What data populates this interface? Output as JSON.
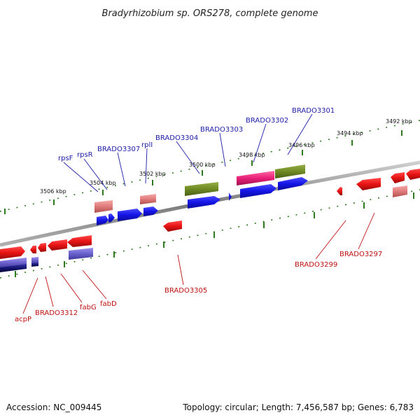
{
  "title": "Bradyrhizobium sp. ORS278, complete genome",
  "accession": "Accession: NC_009445",
  "topology": "Topology: circular; Length: 7,456,587 bp; Genes: 6,783",
  "scale_labels": [
    {
      "text": "3506 kbp"
    },
    {
      "text": "3504 kbp"
    },
    {
      "text": "3502 kbp"
    },
    {
      "text": "3500 kbp"
    },
    {
      "text": "3498 kbp"
    },
    {
      "text": "3496 kbp"
    },
    {
      "text": "3494 kbp"
    },
    {
      "text": "3492 kbp"
    }
  ],
  "top_labels": [
    {
      "text": "rpsF"
    },
    {
      "text": "rpsR"
    },
    {
      "text": "BRADO3307"
    },
    {
      "text": "rplI"
    },
    {
      "text": "BRADO3304"
    },
    {
      "text": "BRADO3303"
    },
    {
      "text": "BRADO3302"
    },
    {
      "text": "BRADO3301"
    }
  ],
  "bottom_labels": [
    {
      "text": "acpP"
    },
    {
      "text": "BRADO3312"
    },
    {
      "text": "fabG"
    },
    {
      "text": "fabD"
    },
    {
      "text": "BRADO3305"
    },
    {
      "text": "BRADO3299"
    },
    {
      "text": "BRADO3297"
    }
  ],
  "colors": {
    "backbone": "#8a8a8a",
    "ticks": "#2e7a1e",
    "blue_gene": "#1515e0",
    "red_gene": "#e01515",
    "pink_gene": "#e8206e",
    "olive_gene": "#6e8a24",
    "light_red_gene": "#e48080",
    "light_blue_gene": "#6a60cc",
    "dark_blue_gene": "#141470"
  }
}
